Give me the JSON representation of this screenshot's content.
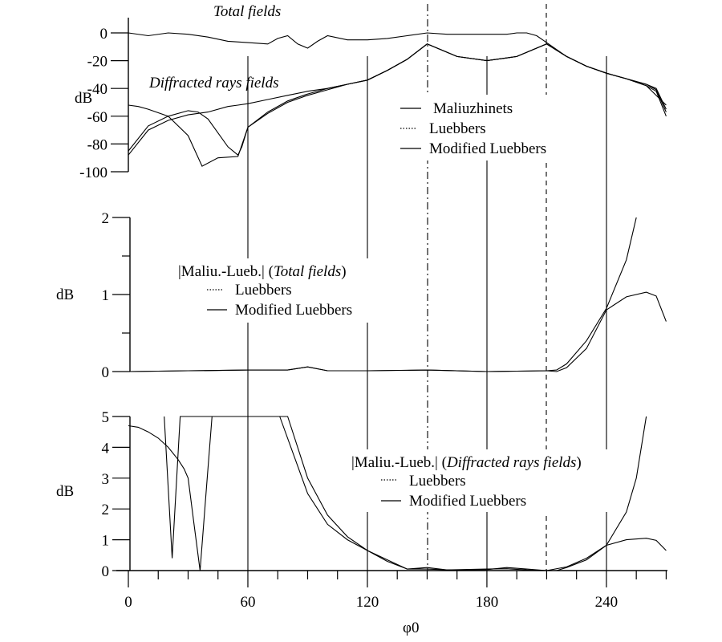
{
  "chart_data": [
    {
      "type": "line",
      "panel": "top",
      "title": "",
      "annotations": [
        "Total fields",
        "Diffracted rays fields"
      ],
      "xlabel": "φ0",
      "ylabel": "dB",
      "xlim": [
        0,
        270
      ],
      "ylim": [
        -100,
        0
      ],
      "yticks": [
        0,
        -20,
        -40,
        -60,
        -80,
        -100
      ],
      "ytick_labels": [
        "0",
        "-20",
        "-40",
        "-60",
        "-80",
        "-100"
      ],
      "legend": [
        "Maliuzhinets",
        "Luebbers",
        "Modified Luebbers"
      ],
      "legend_position": "right-middle",
      "series": [
        {
          "name": "Total fields (all methods, oscillating)",
          "x": [
            0,
            10,
            20,
            30,
            40,
            50,
            60,
            70,
            75,
            80,
            85,
            90,
            95,
            100,
            110,
            120,
            130,
            140,
            150,
            160,
            170,
            180,
            190,
            195,
            200,
            205,
            210,
            220,
            230,
            240,
            250,
            260,
            270
          ],
          "y": [
            0,
            -2,
            0,
            -1,
            -3,
            -6,
            -7,
            -8,
            -4,
            -2,
            -8,
            -11,
            -6,
            -2,
            -5,
            -5,
            -4,
            -2,
            0,
            -1,
            -1,
            -1,
            -1,
            0,
            1,
            -2,
            -7,
            -17,
            -24,
            -29,
            -33,
            -38,
            -52
          ]
        },
        {
          "name": "Diffracted rays fields - Maliuzhinets",
          "x": [
            0,
            10,
            20,
            30,
            40,
            50,
            55,
            60,
            70,
            80,
            90,
            100,
            110,
            120,
            130,
            140,
            150,
            165,
            180,
            195,
            210,
            220,
            230,
            240,
            250,
            260,
            265,
            270
          ],
          "y": [
            -88,
            -70,
            -63,
            -59,
            -57,
            -53,
            -52,
            -51,
            -48,
            -45,
            -42,
            -40,
            -37,
            -34,
            -27,
            -19,
            -8,
            -17,
            -20,
            -17,
            -8,
            -17,
            -24,
            -29,
            -33,
            -37,
            -41,
            -57
          ]
        },
        {
          "name": "Diffracted rays fields - Luebbers",
          "x": [
            0,
            5,
            10,
            20,
            30,
            37,
            45,
            55,
            60,
            70,
            80,
            90,
            100,
            110,
            120,
            130,
            140,
            150,
            165,
            180,
            195,
            210,
            220,
            230,
            240,
            250,
            260,
            265,
            270
          ],
          "y": [
            -52,
            -53,
            -55,
            -60,
            -74,
            -96,
            -90,
            -89,
            -68,
            -57,
            -49,
            -44,
            -40,
            -37,
            -34,
            -27,
            -19,
            -8,
            -17,
            -20,
            -17,
            -8,
            -17,
            -24,
            -29,
            -33,
            -38,
            -42,
            -60
          ]
        },
        {
          "name": "Diffracted rays fields - Modified Luebbers",
          "x": [
            0,
            10,
            20,
            30,
            35,
            40,
            45,
            50,
            55,
            57,
            60,
            70,
            80,
            90,
            100,
            110,
            120,
            130,
            140,
            150,
            165,
            180,
            195,
            210,
            220,
            230,
            240,
            250,
            260,
            265,
            270
          ],
          "y": [
            -85,
            -67,
            -60,
            -56,
            -57,
            -62,
            -72,
            -82,
            -88,
            -82,
            -68,
            -58,
            -50,
            -45,
            -41,
            -37,
            -34,
            -27,
            -19,
            -8,
            -17,
            -20,
            -17,
            -8,
            -17,
            -24,
            -29,
            -33,
            -37,
            -40,
            -55
          ]
        }
      ]
    },
    {
      "type": "line",
      "panel": "middle",
      "title": "|Maliu.-Lueb.| (Total fields)",
      "xlabel": "φ0",
      "ylabel": "dB",
      "xlim": [
        0,
        270
      ],
      "ylim": [
        0,
        2
      ],
      "yticks": [
        0,
        1,
        2
      ],
      "ytick_labels": [
        "0",
        "1",
        "2"
      ],
      "legend": [
        "Luebbers",
        "Modified Luebbers"
      ],
      "series": [
        {
          "name": "Luebbers",
          "x": [
            0,
            30,
            60,
            80,
            90,
            100,
            120,
            150,
            180,
            210,
            215,
            220,
            230,
            240,
            250,
            255
          ],
          "y": [
            0.0,
            0.01,
            0.02,
            0.02,
            0.06,
            0.01,
            0.01,
            0.02,
            0.0,
            0.01,
            0.02,
            0.1,
            0.4,
            0.82,
            1.45,
            2.0
          ]
        },
        {
          "name": "Modified Luebbers",
          "x": [
            0,
            30,
            60,
            80,
            90,
            100,
            120,
            150,
            180,
            210,
            215,
            220,
            230,
            240,
            250,
            260,
            265,
            270
          ],
          "y": [
            0.0,
            0.01,
            0.02,
            0.02,
            0.06,
            0.01,
            0.01,
            0.02,
            0.0,
            0.01,
            0.0,
            0.05,
            0.3,
            0.8,
            0.97,
            1.03,
            0.98,
            0.65
          ]
        }
      ]
    },
    {
      "type": "line",
      "panel": "bottom",
      "title": "|Maliu.-Lueb.| (Diffracted rays fields)",
      "xlabel": "φ0",
      "ylabel": "dB",
      "xlim": [
        0,
        270
      ],
      "ylim": [
        0,
        5
      ],
      "yticks": [
        0,
        1,
        2,
        3,
        4,
        5
      ],
      "ytick_labels": [
        "0",
        "1",
        "2",
        "3",
        "4",
        "5"
      ],
      "xticks": [
        0,
        60,
        120,
        180,
        240
      ],
      "xtick_labels": [
        "0",
        "60",
        "120",
        "180",
        "240"
      ],
      "legend": [
        "Luebbers",
        "Modified Luebbers"
      ],
      "series": [
        {
          "name": "Luebbers",
          "x": [
            0,
            5,
            10,
            15,
            20,
            25,
            28,
            30,
            33,
            36,
            39,
            42,
            80,
            90,
            100,
            110,
            120,
            130,
            140,
            150,
            160,
            180,
            190,
            200,
            210,
            220,
            230,
            240,
            250,
            255,
            260
          ],
          "y": [
            4.7,
            4.65,
            4.5,
            4.3,
            4.0,
            3.6,
            3.3,
            3.0,
            1.5,
            0.0,
            2.5,
            5.0,
            5.0,
            3.0,
            1.8,
            1.1,
            0.65,
            0.3,
            0.05,
            0.1,
            0.02,
            0.05,
            0.06,
            0.02,
            0.0,
            0.12,
            0.4,
            0.82,
            1.9,
            3.0,
            5.0
          ]
        },
        {
          "name": "Modified Luebbers",
          "x": [
            18,
            22,
            26,
            76,
            90,
            100,
            110,
            120,
            130,
            140,
            150,
            160,
            180,
            190,
            200,
            210,
            215,
            220,
            230,
            240,
            250,
            260,
            265,
            270
          ],
          "y": [
            5.0,
            0.4,
            5.0,
            5.0,
            2.5,
            1.5,
            1.0,
            0.65,
            0.35,
            0.05,
            0.05,
            0.02,
            0.03,
            0.1,
            0.05,
            0.0,
            0.0,
            0.1,
            0.35,
            0.82,
            1.0,
            1.05,
            0.98,
            0.65
          ]
        }
      ]
    }
  ],
  "labels": {
    "top_ylabel": "dB",
    "mid_ylabel": "dB",
    "bot_ylabel": "dB",
    "xlabel": "φ0",
    "top_annotation_total": "Total fields",
    "top_annotation_diff": "Diffracted rays fields",
    "top_legend": [
      "Maliuzhinets",
      "Luebbers",
      "Modified Luebbers"
    ],
    "mid_legend_title_prefix": "|Maliu.-Lueb.| (",
    "mid_legend_title_italic": "Total fields",
    "mid_legend_title_suffix": ")",
    "mid_legend": [
      "Luebbers",
      "Modified Luebbers"
    ],
    "bot_legend_title_prefix": "|Maliu.-Lueb.| (",
    "bot_legend_title_italic": "Diffracted rays fields",
    "bot_legend_title_suffix": ")",
    "bot_legend": [
      "Luebbers",
      "Modified Luebbers"
    ],
    "top_yticks": [
      "0",
      "-20",
      "-40",
      "-60",
      "-80",
      "-100"
    ],
    "mid_yticks": [
      "2",
      "1",
      "0"
    ],
    "bot_yticks": [
      "5",
      "4",
      "3",
      "2",
      "1",
      "0"
    ],
    "xticks": [
      "0",
      "60",
      "120",
      "180",
      "240"
    ]
  },
  "reference_lines": {
    "solid_at": [
      60,
      120,
      180,
      240
    ],
    "dashdot_at": [
      150
    ],
    "dashed_at": [
      210
    ]
  }
}
